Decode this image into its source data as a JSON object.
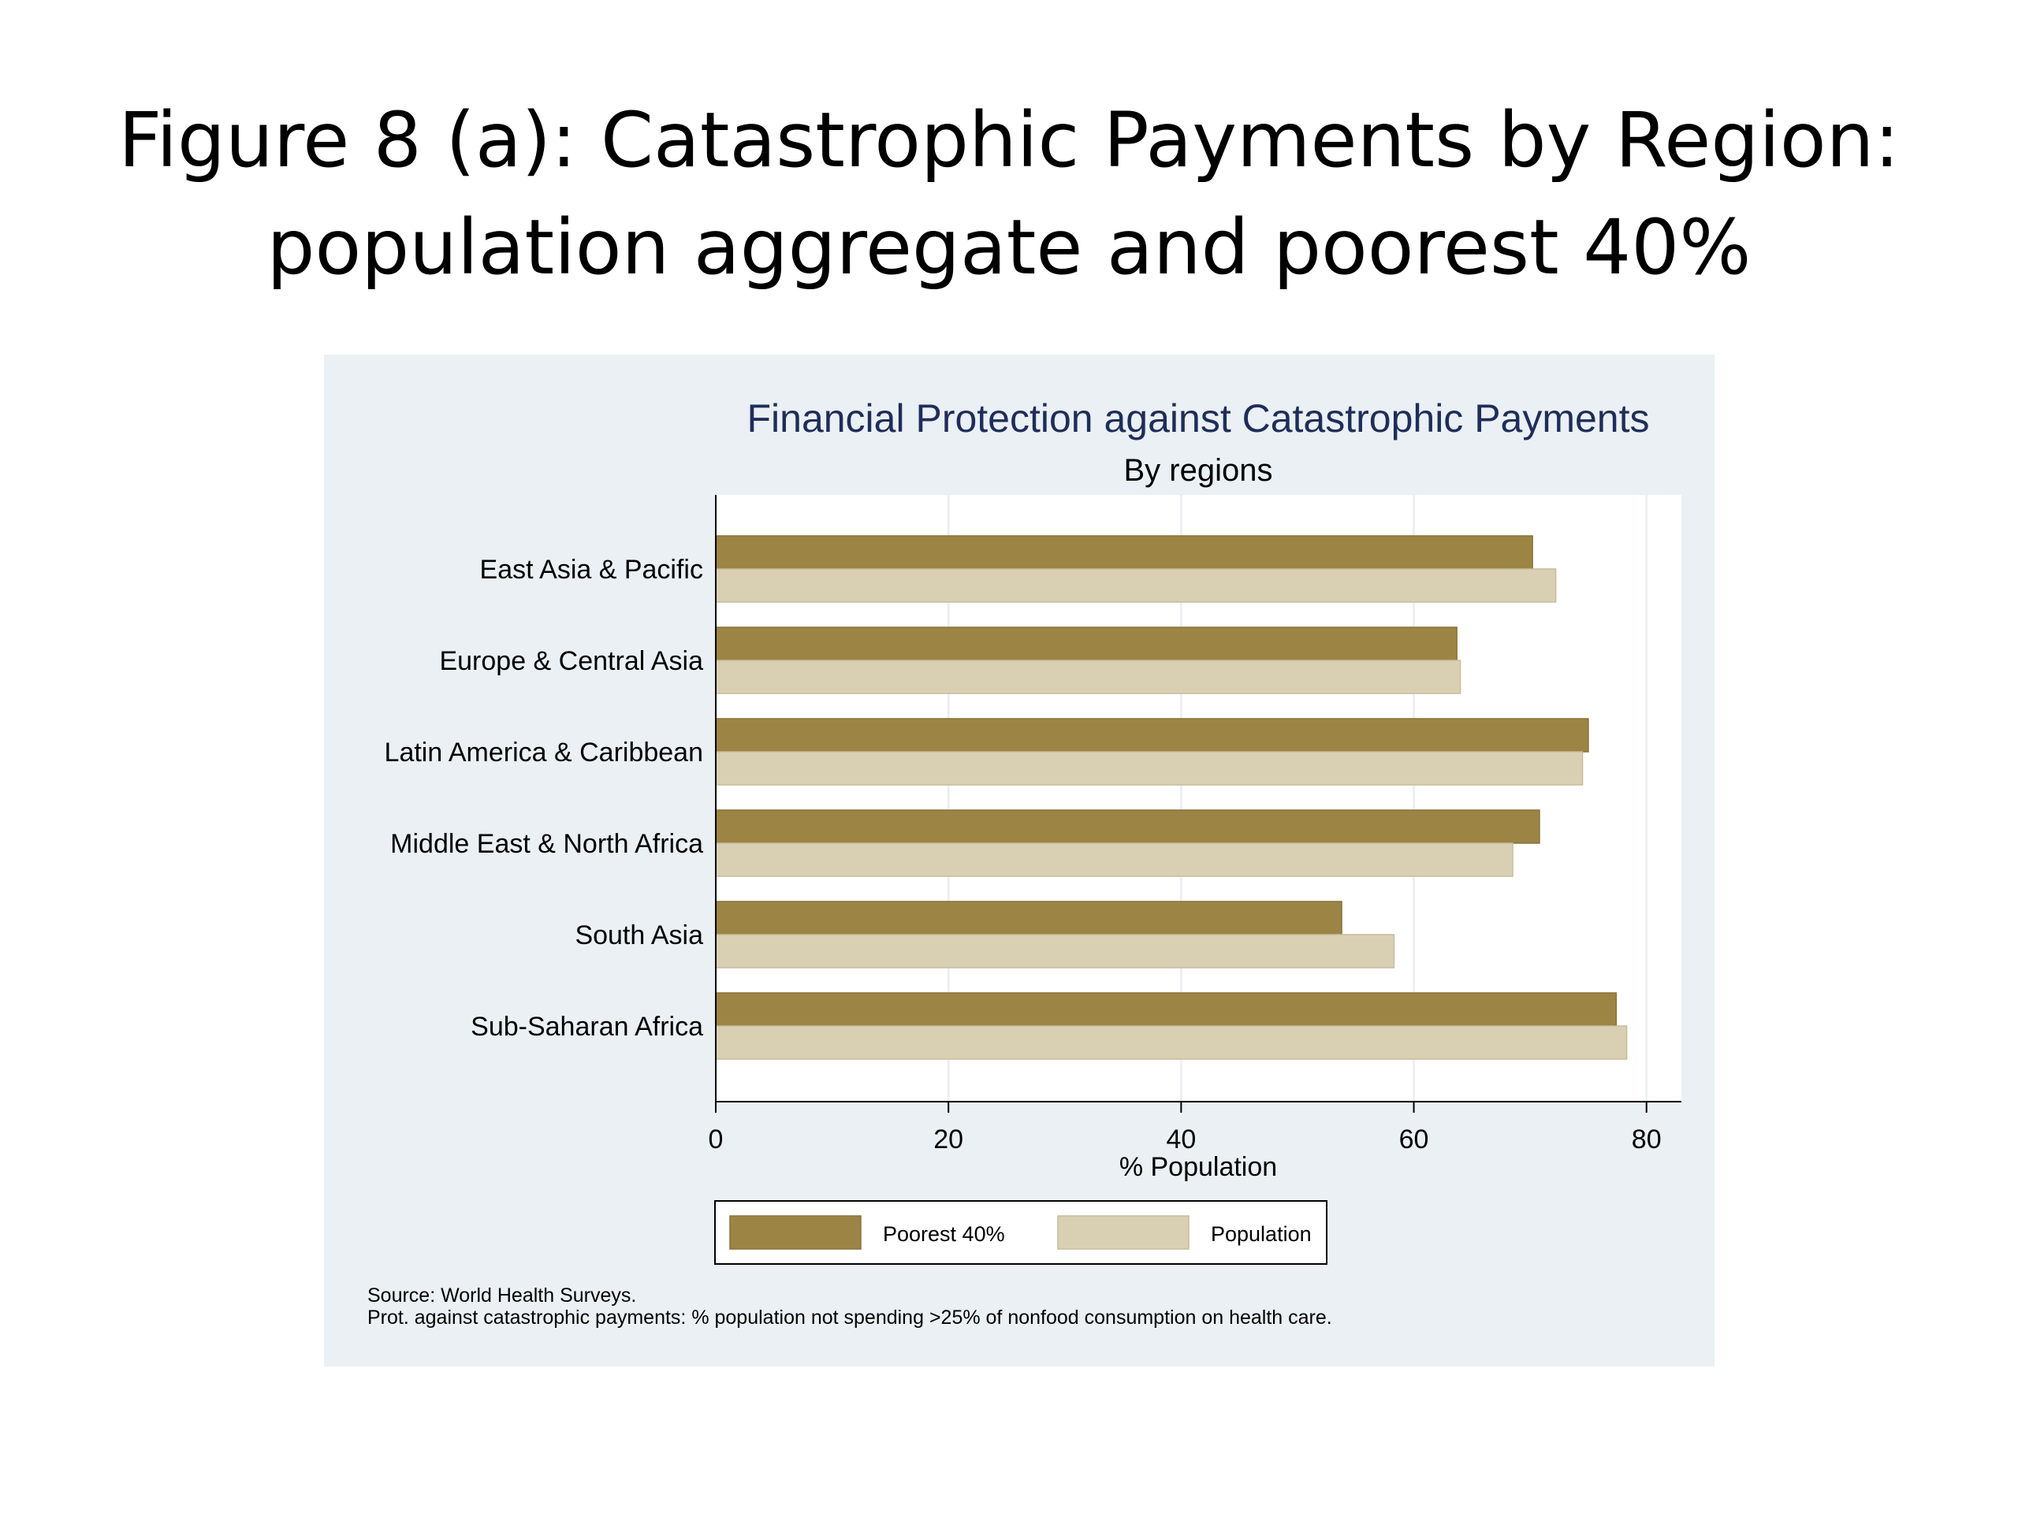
{
  "slide": {
    "title_line1": "Figure 8 (a): Catastrophic Payments by Region:",
    "title_line2": "population aggregate and poorest 40%"
  },
  "chart_data": {
    "type": "bar",
    "orientation": "horizontal",
    "title": "Financial Protection against Catastrophic Payments",
    "subtitle": "By regions",
    "xlabel": "% Population",
    "ylabel": "",
    "xlim": [
      0,
      83
    ],
    "xticks": [
      0,
      20,
      40,
      60,
      80
    ],
    "grid": true,
    "legend_position": "bottom",
    "categories": [
      "East Asia & Pacific",
      "Europe & Central Asia",
      "Latin America & Caribbean",
      "Middle East & North Africa",
      "South Asia",
      "Sub-Saharan Africa"
    ],
    "series": [
      {
        "name": "Poorest 40%",
        "color": "#9c8445",
        "values": [
          70.2,
          63.7,
          75.0,
          70.8,
          53.8,
          77.4
        ]
      },
      {
        "name": "Population",
        "color": "#d9d0b4",
        "values": [
          72.2,
          64.0,
          74.5,
          68.5,
          58.3,
          78.3
        ]
      }
    ],
    "notes": [
      "Source: World Health Surveys.",
      "Prot. against catastrophic payments: % population not spending >25% of nonfood consumption on health care."
    ]
  }
}
